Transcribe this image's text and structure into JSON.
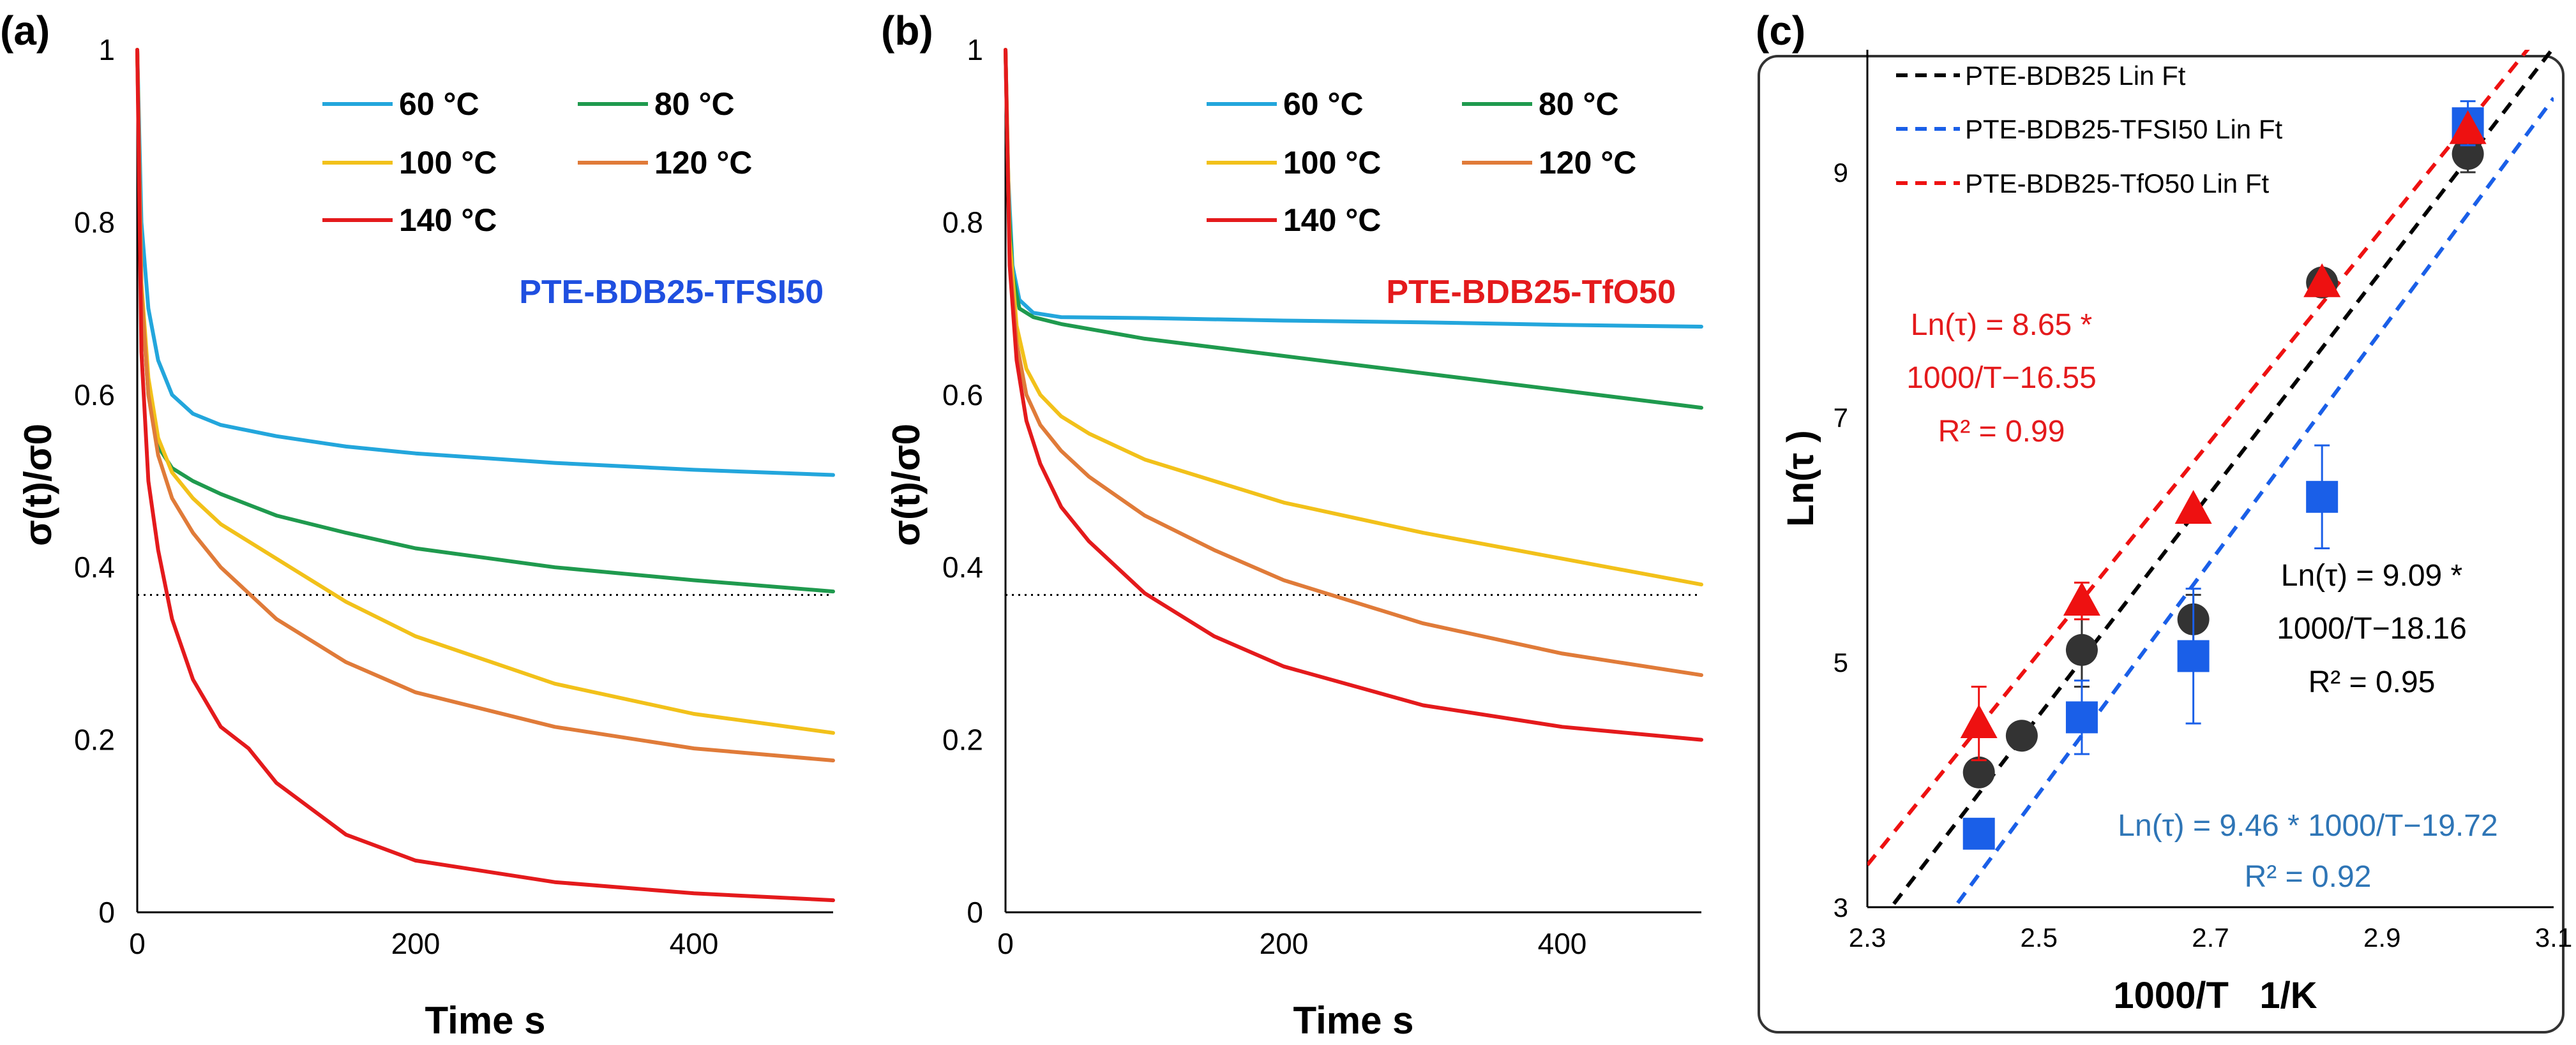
{
  "panels": [
    {
      "label": "(a)",
      "chart_data": {
        "type": "line",
        "xlabel": "Time s",
        "ylabel": "σ(t)/σ0",
        "xlim": [
          0,
          500
        ],
        "ylim": [
          0,
          1
        ],
        "xticks": [
          "0",
          "200",
          "400"
        ],
        "xtick_values": [
          0,
          200,
          400
        ],
        "yticks": [
          "0",
          "0.2",
          "0.4",
          "0.6",
          "0.8",
          "1"
        ],
        "ytick_values": [
          0,
          0.2,
          0.4,
          0.6,
          0.8,
          1
        ],
        "annotation": "PTE-BDB25-TFSI50",
        "annotation_color": "#1f4fe0",
        "reference_line": {
          "y": 0.368,
          "style": "dotted"
        },
        "series": [
          {
            "name": "60 °C",
            "color": "#23a6dc",
            "x": [
              0,
              3,
              8,
              15,
              25,
              40,
              60,
              100,
              150,
              200,
              300,
              400,
              500
            ],
            "y": [
              1,
              0.8,
              0.7,
              0.64,
              0.6,
              0.578,
              0.565,
              0.552,
              0.54,
              0.532,
              0.521,
              0.513,
              0.507
            ]
          },
          {
            "name": "80 °C",
            "color": "#1f9a4e",
            "x": [
              0,
              3,
              8,
              15,
              25,
              40,
              60,
              100,
              150,
              200,
              300,
              400,
              500
            ],
            "y": [
              1,
              0.72,
              0.6,
              0.54,
              0.515,
              0.5,
              0.485,
              0.46,
              0.44,
              0.422,
              0.4,
              0.385,
              0.372
            ]
          },
          {
            "name": "100 °C",
            "color": "#f2c11a",
            "x": [
              0,
              3,
              8,
              15,
              25,
              40,
              60,
              100,
              150,
              200,
              300,
              400,
              500
            ],
            "y": [
              1,
              0.73,
              0.62,
              0.55,
              0.51,
              0.48,
              0.45,
              0.41,
              0.36,
              0.32,
              0.265,
              0.23,
              0.208
            ]
          },
          {
            "name": "120 °C",
            "color": "#e07b39",
            "x": [
              0,
              3,
              8,
              15,
              25,
              40,
              60,
              100,
              150,
              200,
              300,
              400,
              500
            ],
            "y": [
              1,
              0.72,
              0.6,
              0.53,
              0.48,
              0.44,
              0.4,
              0.34,
              0.29,
              0.255,
              0.215,
              0.19,
              0.176
            ]
          },
          {
            "name": "140 °C",
            "color": "#e41a1c",
            "x": [
              0,
              3,
              8,
              15,
              25,
              40,
              60,
              80,
              100,
              150,
              200,
              300,
              400,
              500
            ],
            "y": [
              1,
              0.65,
              0.5,
              0.42,
              0.34,
              0.27,
              0.215,
              0.19,
              0.15,
              0.09,
              0.06,
              0.035,
              0.022,
              0.014
            ]
          }
        ]
      }
    },
    {
      "label": "(b)",
      "chart_data": {
        "type": "line",
        "xlabel": "Time s",
        "ylabel": "σ(t)/σ0",
        "xlim": [
          0,
          500
        ],
        "ylim": [
          0,
          1
        ],
        "xticks": [
          "0",
          "200",
          "400"
        ],
        "xtick_values": [
          0,
          200,
          400
        ],
        "yticks": [
          "0",
          "0.2",
          "0.4",
          "0.6",
          "0.8",
          "1"
        ],
        "ytick_values": [
          0,
          0.2,
          0.4,
          0.6,
          0.8,
          1
        ],
        "annotation": "PTE-BDB25-TfO50",
        "annotation_color": "#e41a1c",
        "reference_line": {
          "y": 0.368,
          "style": "dotted"
        },
        "series": [
          {
            "name": "60 °C",
            "color": "#23a6dc",
            "x": [
              0,
              2,
              5,
              10,
              20,
              40,
              100,
              200,
              300,
              400,
              500
            ],
            "y": [
              1,
              0.85,
              0.75,
              0.71,
              0.695,
              0.69,
              0.689,
              0.686,
              0.684,
              0.681,
              0.679
            ]
          },
          {
            "name": "80 °C",
            "color": "#1f9a4e",
            "x": [
              0,
              2,
              5,
              10,
              20,
              40,
              100,
              200,
              300,
              400,
              500
            ],
            "y": [
              1,
              0.83,
              0.74,
              0.7,
              0.69,
              0.682,
              0.665,
              0.645,
              0.625,
              0.605,
              0.585
            ]
          },
          {
            "name": "100 °C",
            "color": "#f2c11a",
            "x": [
              0,
              3,
              8,
              15,
              25,
              40,
              60,
              100,
              150,
              200,
              300,
              400,
              500
            ],
            "y": [
              1,
              0.78,
              0.68,
              0.63,
              0.6,
              0.575,
              0.555,
              0.525,
              0.5,
              0.475,
              0.44,
              0.41,
              0.38
            ]
          },
          {
            "name": "120 °C",
            "color": "#e07b39",
            "x": [
              0,
              3,
              8,
              15,
              25,
              40,
              60,
              100,
              150,
              200,
              300,
              400,
              500
            ],
            "y": [
              1,
              0.76,
              0.66,
              0.6,
              0.565,
              0.535,
              0.505,
              0.46,
              0.42,
              0.385,
              0.335,
              0.3,
              0.275
            ]
          },
          {
            "name": "140 °C",
            "color": "#e41a1c",
            "x": [
              0,
              3,
              8,
              15,
              25,
              40,
              60,
              80,
              100,
              150,
              200,
              300,
              400,
              500
            ],
            "y": [
              1,
              0.75,
              0.64,
              0.57,
              0.52,
              0.47,
              0.43,
              0.4,
              0.37,
              0.32,
              0.285,
              0.24,
              0.215,
              0.2
            ]
          }
        ]
      }
    },
    {
      "label": "(c)",
      "chart_data": {
        "type": "scatter",
        "xlabel": "1000/T   1/K",
        "ylabel": "Ln(τ )",
        "xlim": [
          2.3,
          3.1
        ],
        "ylim": [
          3,
          10
        ],
        "xticks": [
          "2.3",
          "2.5",
          "2.7",
          "2.9",
          "3.1"
        ],
        "xtick_values": [
          2.3,
          2.5,
          2.7,
          2.9,
          3.1
        ],
        "yticks": [
          "3",
          "5",
          "7",
          "9"
        ],
        "ytick_values": [
          3,
          5,
          7,
          9
        ],
        "series": [
          {
            "name": "PTE-BDB25",
            "marker": "circle",
            "color": "#333333",
            "x": [
              2.43,
              2.48,
              2.55,
              2.68,
              2.83,
              3.0
            ],
            "y": [
              4.1,
              4.4,
              5.1,
              5.35,
              8.1,
              9.15
            ],
            "err": [
              0.0,
              0.0,
              0.3,
              0.2,
              0.0,
              0.15
            ]
          },
          {
            "name": "PTE-BDB25-TFSI50",
            "marker": "square",
            "color": "#1a5fe8",
            "x": [
              2.43,
              2.55,
              2.68,
              2.83,
              3.0
            ],
            "y": [
              3.6,
              4.55,
              5.05,
              6.35,
              9.4
            ],
            "err": [
              0.0,
              0.3,
              0.55,
              0.42,
              0.18
            ]
          },
          {
            "name": "PTE-BDB25-TfO50",
            "marker": "triangle",
            "color": "#ee1111",
            "x": [
              2.43,
              2.55,
              2.68,
              2.83,
              3.0
            ],
            "y": [
              4.5,
              5.5,
              6.25,
              8.1,
              9.35
            ],
            "err": [
              0.3,
              0.15,
              0.0,
              0.0,
              0.0
            ]
          }
        ],
        "fits": [
          {
            "name": "PTE-BDB25 Lin Ft",
            "color": "#000000",
            "slope": 9.09,
            "intercept": -18.16
          },
          {
            "name": "PTE-BDB25-TFSI50 Lin Ft",
            "color": "#1a5fe8",
            "slope": 9.46,
            "intercept": -19.72
          },
          {
            "name": "PTE-BDB25-TfO50 Lin Ft",
            "color": "#ee1111",
            "slope": 8.65,
            "intercept": -16.55
          }
        ],
        "equations": [
          {
            "color": "#e41a1c",
            "lines": [
              "Ln(τ) = 8.65 *",
              "1000/T−16.55",
              "R² = 0.99"
            ]
          },
          {
            "color": "#000000",
            "lines": [
              "Ln(τ) = 9.09 *",
              "1000/T−18.16",
              "R² = 0.95"
            ]
          },
          {
            "color": "#2e75b6",
            "lines": [
              "Ln(τ) = 9.46 * 1000/T−19.72",
              "R² = 0.92"
            ]
          }
        ]
      }
    }
  ]
}
